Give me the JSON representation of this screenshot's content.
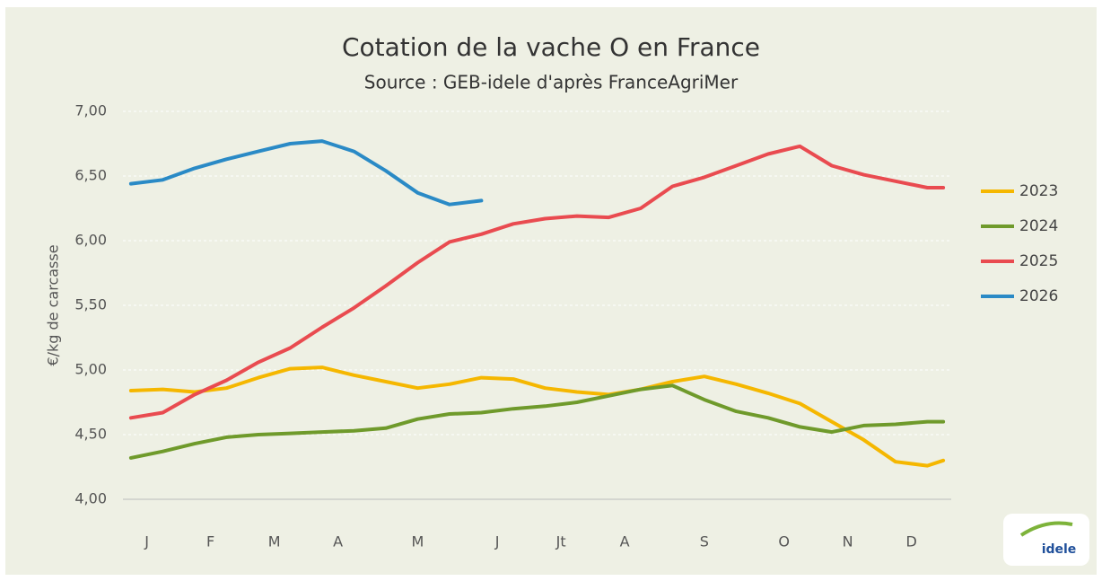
{
  "chart_data": {
    "type": "line",
    "title": "Cotation de la vache O en France",
    "subtitle": "Source : GEB-idele d'après FranceAgriMer",
    "y_label": "€/kg de carcasse",
    "x": [
      1,
      3,
      5,
      7,
      9,
      11,
      13,
      15,
      17,
      19,
      21,
      23,
      25,
      27,
      29,
      31,
      33,
      35,
      37,
      39,
      41,
      43,
      45,
      47,
      49,
      51,
      52
    ],
    "xlim": [
      0.5,
      52.5
    ],
    "xticks": [
      {
        "value": 2,
        "label": "J"
      },
      {
        "value": 6,
        "label": "F"
      },
      {
        "value": 10,
        "label": "M"
      },
      {
        "value": 14,
        "label": "A"
      },
      {
        "value": 19,
        "label": "M"
      },
      {
        "value": 24,
        "label": "J"
      },
      {
        "value": 28,
        "label": "Jt"
      },
      {
        "value": 32,
        "label": "A"
      },
      {
        "value": 37,
        "label": "S"
      },
      {
        "value": 42,
        "label": "O"
      },
      {
        "value": 46,
        "label": "N"
      },
      {
        "value": 50,
        "label": "D"
      }
    ],
    "ylim": [
      4,
      7
    ],
    "yticks": [
      {
        "value": 4,
        "label": "4,00"
      },
      {
        "value": 4.5,
        "label": "4,50"
      },
      {
        "value": 5,
        "label": "5,00"
      },
      {
        "value": 5.5,
        "label": "5,50"
      },
      {
        "value": 6,
        "label": "6,00"
      },
      {
        "value": 6.5,
        "label": "6,50"
      },
      {
        "value": 7,
        "label": "7,00"
      }
    ],
    "grid": true,
    "legend": "right",
    "series": [
      {
        "name": "2023",
        "color": "#f5b700",
        "values": [
          4.84,
          4.85,
          4.83,
          4.86,
          4.94,
          5.01,
          5.02,
          4.96,
          4.91,
          4.86,
          4.89,
          4.94,
          4.93,
          4.86,
          4.83,
          4.81,
          4.85,
          4.91,
          4.95,
          4.89,
          4.82,
          4.74,
          4.6,
          4.46,
          4.29,
          4.26,
          4.3
        ]
      },
      {
        "name": "2024",
        "color": "#6f9a2b",
        "values": [
          4.32,
          4.37,
          4.43,
          4.48,
          4.5,
          4.51,
          4.52,
          4.53,
          4.55,
          4.62,
          4.66,
          4.67,
          4.7,
          4.72,
          4.75,
          4.8,
          4.85,
          4.88,
          4.77,
          4.68,
          4.63,
          4.56,
          4.52,
          4.57,
          4.58,
          4.6,
          4.6
        ]
      },
      {
        "name": "2025",
        "color": "#e94b50",
        "values": [
          4.63,
          4.67,
          4.81,
          4.92,
          5.06,
          5.17,
          5.33,
          5.48,
          5.65,
          5.83,
          5.99,
          6.05,
          6.13,
          6.17,
          6.19,
          6.18,
          6.25,
          6.42,
          6.49,
          6.58,
          6.67,
          6.73,
          6.58,
          6.51,
          6.46,
          6.41,
          6.41
        ]
      },
      {
        "name": "2026",
        "color": "#2a8ac6",
        "values": [
          6.44,
          6.47,
          6.56,
          6.63,
          6.69,
          6.75,
          6.77,
          6.69,
          6.54,
          6.37,
          6.28,
          6.31,
          null,
          null,
          null,
          null,
          null,
          null,
          null,
          null,
          null,
          null,
          null,
          null,
          null,
          null,
          null
        ]
      }
    ]
  },
  "logo": {
    "text": "idele"
  }
}
